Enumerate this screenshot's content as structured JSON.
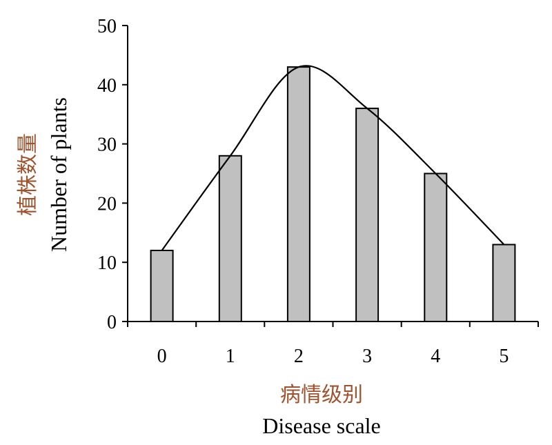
{
  "chart_data": {
    "type": "bar",
    "categories": [
      "0",
      "1",
      "2",
      "3",
      "4",
      "5"
    ],
    "values": [
      12,
      28,
      43,
      36,
      25,
      13
    ],
    "overlay": "smooth-line-fit",
    "xlabel_zh": "病情级别",
    "xlabel": "Disease scale",
    "ylabel_zh": "植株数量",
    "ylabel": "Number of plants",
    "ylim": [
      0,
      50
    ],
    "yticks": [
      "0",
      "10",
      "20",
      "30",
      "40",
      "50"
    ],
    "grid": false,
    "legend": "none"
  },
  "colors": {
    "bar_fill": "#c0c0c0",
    "bar_stroke": "#000000",
    "curve": "#000000",
    "axis": "#000000",
    "zh_label": "#a0522d"
  }
}
